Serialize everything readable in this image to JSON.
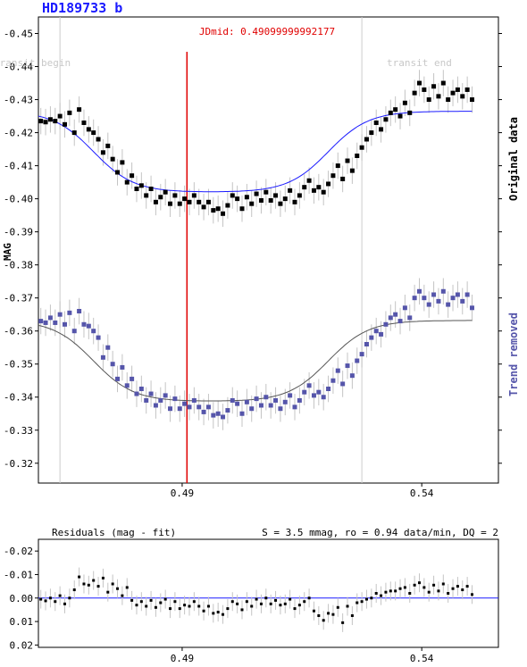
{
  "title": "HD189733 b",
  "chart_data": [
    {
      "type": "scatter",
      "ylabel": "MAG",
      "right_label_top": "Original data",
      "right_label_bottom": "Trend removed",
      "midline_label": "JDmid: 0.49099999992177",
      "midline_x": 0.491,
      "transit_begin_label": "transit begin",
      "transit_end_label": "transit end",
      "transit_begin_x": 0.4645,
      "transit_end_x": 0.5275,
      "xlim": [
        0.46,
        0.556
      ],
      "ylim": [
        -0.455,
        -0.314
      ],
      "y_inverted": true,
      "yticks": [
        -0.45,
        -0.44,
        -0.43,
        -0.42,
        -0.41,
        -0.4,
        -0.39,
        -0.38,
        -0.37,
        -0.36,
        -0.35,
        -0.34,
        -0.33,
        -0.32
      ],
      "ytick_labels": [
        "-0.45",
        "-0.44",
        "-0.43",
        "-0.42",
        "-0.41",
        "-0.40",
        "-0.39",
        "-0.38",
        "-0.37",
        "-0.36",
        "-0.35",
        "-0.34",
        "-0.33",
        "-0.32"
      ],
      "xticks": [
        0.49,
        0.54
      ],
      "xtick_labels": [
        "0.49",
        "0.54"
      ],
      "original_color": "#000000",
      "original_fit_color": "#1a1aff",
      "trend_removed_color": "#5555aa",
      "trend_removed_fit_color": "#555555",
      "series": [
        {
          "name": "Original data",
          "baseline": -0.4265,
          "depth": 0.0245,
          "x": [
            0.4605,
            0.4615,
            0.4625,
            0.4635,
            0.4645,
            0.4655,
            0.4665,
            0.4675,
            0.4685,
            0.4695,
            0.4705,
            0.4715,
            0.4725,
            0.4735,
            0.4745,
            0.4755,
            0.4765,
            0.4775,
            0.4785,
            0.4795,
            0.4805,
            0.4815,
            0.4825,
            0.4835,
            0.4845,
            0.4855,
            0.4865,
            0.4875,
            0.4885,
            0.4895,
            0.4905,
            0.4915,
            0.4925,
            0.4935,
            0.4945,
            0.4955,
            0.4965,
            0.4975,
            0.4985,
            0.4995,
            0.5005,
            0.5015,
            0.5025,
            0.5035,
            0.5045,
            0.5055,
            0.5065,
            0.5075,
            0.5085,
            0.5095,
            0.5105,
            0.5115,
            0.5125,
            0.5135,
            0.5145,
            0.5155,
            0.5165,
            0.5175,
            0.5185,
            0.5195,
            0.5205,
            0.5215,
            0.5225,
            0.5235,
            0.5245,
            0.5255,
            0.5265,
            0.5275,
            0.5285,
            0.5295,
            0.5305,
            0.5315,
            0.5325,
            0.5335,
            0.5345,
            0.5355,
            0.5365,
            0.5375,
            0.5385,
            0.5395,
            0.5405,
            0.5415,
            0.5425,
            0.5435,
            0.5445,
            0.5455,
            0.5465,
            0.5475,
            0.5485,
            0.5495,
            0.5505
          ],
          "y": [
            -0.4235,
            -0.4232,
            -0.424,
            -0.4235,
            -0.425,
            -0.4225,
            -0.426,
            -0.42,
            -0.427,
            -0.423,
            -0.421,
            -0.42,
            -0.418,
            -0.414,
            -0.416,
            -0.412,
            -0.408,
            -0.411,
            -0.405,
            -0.407,
            -0.403,
            -0.404,
            -0.401,
            -0.403,
            -0.399,
            -0.4005,
            -0.402,
            -0.3985,
            -0.401,
            -0.3985,
            -0.4,
            -0.399,
            -0.401,
            -0.399,
            -0.3975,
            -0.399,
            -0.3965,
            -0.397,
            -0.3955,
            -0.398,
            -0.401,
            -0.4,
            -0.397,
            -0.4005,
            -0.3985,
            -0.4015,
            -0.3995,
            -0.402,
            -0.3995,
            -0.401,
            -0.3985,
            -0.4,
            -0.4025,
            -0.399,
            -0.401,
            -0.4035,
            -0.4055,
            -0.4025,
            -0.4035,
            -0.402,
            -0.4045,
            -0.407,
            -0.41,
            -0.406,
            -0.4115,
            -0.4085,
            -0.413,
            -0.4155,
            -0.418,
            -0.42,
            -0.423,
            -0.421,
            -0.424,
            -0.426,
            -0.427,
            -0.425,
            -0.429,
            -0.426,
            -0.432,
            -0.435,
            -0.433,
            -0.43,
            -0.434,
            -0.431,
            -0.435,
            -0.43,
            -0.432,
            -0.433,
            -0.431,
            -0.433,
            -0.43
          ]
        },
        {
          "name": "Trend removed",
          "baseline": -0.3632,
          "depth": 0.0245,
          "x": [
            0.4605,
            0.4615,
            0.4625,
            0.4635,
            0.4645,
            0.4655,
            0.4665,
            0.4675,
            0.4685,
            0.4695,
            0.4705,
            0.4715,
            0.4725,
            0.4735,
            0.4745,
            0.4755,
            0.4765,
            0.4775,
            0.4785,
            0.4795,
            0.4805,
            0.4815,
            0.4825,
            0.4835,
            0.4845,
            0.4855,
            0.4865,
            0.4875,
            0.4885,
            0.4895,
            0.4905,
            0.4915,
            0.4925,
            0.4935,
            0.4945,
            0.4955,
            0.4965,
            0.4975,
            0.4985,
            0.4995,
            0.5005,
            0.5015,
            0.5025,
            0.5035,
            0.5045,
            0.5055,
            0.5065,
            0.5075,
            0.5085,
            0.5095,
            0.5105,
            0.5115,
            0.5125,
            0.5135,
            0.5145,
            0.5155,
            0.5165,
            0.5175,
            0.5185,
            0.5195,
            0.5205,
            0.5215,
            0.5225,
            0.5235,
            0.5245,
            0.5255,
            0.5265,
            0.5275,
            0.5285,
            0.5295,
            0.5305,
            0.5315,
            0.5325,
            0.5335,
            0.5345,
            0.5355,
            0.5365,
            0.5375,
            0.5385,
            0.5395,
            0.5405,
            0.5415,
            0.5425,
            0.5435,
            0.5445,
            0.5455,
            0.5465,
            0.5475,
            0.5485,
            0.5495,
            0.5505
          ],
          "y": [
            -0.363,
            -0.3625,
            -0.364,
            -0.3625,
            -0.365,
            -0.362,
            -0.3655,
            -0.36,
            -0.366,
            -0.362,
            -0.3615,
            -0.36,
            -0.358,
            -0.352,
            -0.355,
            -0.35,
            -0.3455,
            -0.349,
            -0.3435,
            -0.3455,
            -0.341,
            -0.3425,
            -0.339,
            -0.341,
            -0.3375,
            -0.339,
            -0.3405,
            -0.3365,
            -0.3395,
            -0.3365,
            -0.338,
            -0.337,
            -0.339,
            -0.337,
            -0.3355,
            -0.337,
            -0.3345,
            -0.335,
            -0.334,
            -0.336,
            -0.339,
            -0.338,
            -0.335,
            -0.3385,
            -0.3365,
            -0.3395,
            -0.3375,
            -0.34,
            -0.3375,
            -0.339,
            -0.3365,
            -0.3385,
            -0.3405,
            -0.337,
            -0.339,
            -0.3415,
            -0.3435,
            -0.3405,
            -0.3415,
            -0.34,
            -0.3425,
            -0.345,
            -0.348,
            -0.344,
            -0.3495,
            -0.3465,
            -0.351,
            -0.353,
            -0.356,
            -0.358,
            -0.36,
            -0.359,
            -0.362,
            -0.364,
            -0.365,
            -0.363,
            -0.367,
            -0.364,
            -0.37,
            -0.372,
            -0.37,
            -0.368,
            -0.371,
            -0.369,
            -0.372,
            -0.368,
            -0.37,
            -0.371,
            -0.369,
            -0.371,
            -0.367
          ]
        }
      ]
    },
    {
      "type": "scatter",
      "title": "Residuals (mag - fit)",
      "stats": "S = 3.5 mmag, ro = 0.94 data/min, DQ = 2",
      "xlim": [
        0.46,
        0.556
      ],
      "ylim": [
        -0.025,
        0.021
      ],
      "y_inverted": true,
      "yticks": [
        -0.02,
        -0.01,
        0.0,
        0.01,
        0.02
      ],
      "ytick_labels": [
        "-0.02",
        "-0.01",
        "0.00",
        "0.01",
        "0.02"
      ],
      "xticks": [
        0.49,
        0.54
      ],
      "xtick_labels": [
        "0.49",
        "0.54"
      ],
      "zero_line_color": "#1a1aff",
      "series": [
        {
          "name": "Residuals",
          "x": [
            0.4605,
            0.4615,
            0.4625,
            0.4635,
            0.4645,
            0.4655,
            0.4665,
            0.4675,
            0.4685,
            0.4695,
            0.4705,
            0.4715,
            0.4725,
            0.4735,
            0.4745,
            0.4755,
            0.4765,
            0.4775,
            0.4785,
            0.4795,
            0.4805,
            0.4815,
            0.4825,
            0.4835,
            0.4845,
            0.4855,
            0.4865,
            0.4875,
            0.4885,
            0.4895,
            0.4905,
            0.4915,
            0.4925,
            0.4935,
            0.4945,
            0.4955,
            0.4965,
            0.4975,
            0.4985,
            0.4995,
            0.5005,
            0.5015,
            0.5025,
            0.5035,
            0.5045,
            0.5055,
            0.5065,
            0.5075,
            0.5085,
            0.5095,
            0.5105,
            0.5115,
            0.5125,
            0.5135,
            0.5145,
            0.5155,
            0.5165,
            0.5175,
            0.5185,
            0.5195,
            0.5205,
            0.5215,
            0.5225,
            0.5235,
            0.5245,
            0.5255,
            0.5265,
            0.5275,
            0.5285,
            0.5295,
            0.5305,
            0.5315,
            0.5325,
            0.5335,
            0.5345,
            0.5355,
            0.5365,
            0.5375,
            0.5385,
            0.5395,
            0.5405,
            0.5415,
            0.5425,
            0.5435,
            0.5445,
            0.5455,
            0.5465,
            0.5475,
            0.5485,
            0.5495,
            0.5505
          ],
          "y": [
            0.0005,
            0.0012,
            0.0,
            0.0015,
            -0.001,
            0.0025,
            0.0,
            -0.0035,
            -0.009,
            -0.006,
            -0.0055,
            -0.0075,
            -0.005,
            -0.0085,
            -0.0025,
            -0.006,
            -0.004,
            -0.001,
            -0.0045,
            0.001,
            0.003,
            0.0015,
            0.0035,
            0.001,
            0.004,
            0.002,
            0.0005,
            0.0045,
            0.0015,
            0.0045,
            0.003,
            0.0035,
            0.0015,
            0.0035,
            0.0055,
            0.0035,
            0.0065,
            0.006,
            0.007,
            0.0045,
            0.0015,
            0.0025,
            0.005,
            0.0015,
            0.0035,
            0.0005,
            0.0025,
            0.0,
            0.0025,
            0.001,
            0.003,
            0.0025,
            0.0005,
            0.0045,
            0.003,
            0.0015,
            0.0,
            0.0055,
            0.0075,
            0.0095,
            0.0065,
            0.007,
            0.004,
            0.0105,
            0.0035,
            0.0075,
            0.002,
            0.0015,
            0.0005,
            0.0,
            -0.002,
            -0.001,
            -0.0025,
            -0.003,
            -0.003,
            -0.004,
            -0.0045,
            -0.002,
            -0.0055,
            -0.0065,
            -0.0045,
            -0.0025,
            -0.0055,
            -0.003,
            -0.006,
            -0.002,
            -0.004,
            -0.005,
            -0.0035,
            -0.005,
            -0.0015
          ]
        }
      ]
    }
  ]
}
